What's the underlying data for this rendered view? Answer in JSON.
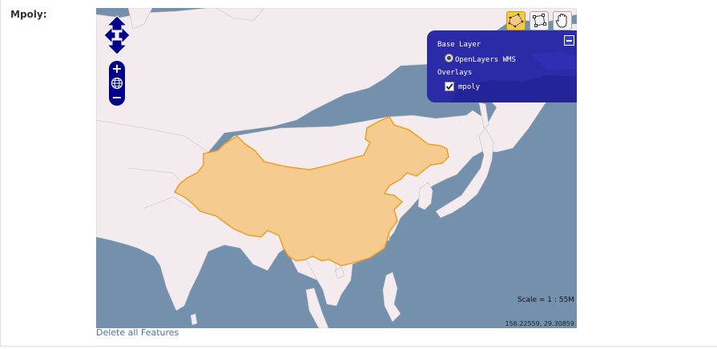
{
  "form": {
    "field_label": "Mpoly:"
  },
  "map": {
    "colors": {
      "sea": "#7391ad",
      "land": "#f3ebee",
      "feature_fill": "#f4c98a",
      "feature_stroke": "#f09a1a",
      "panel": "#00008b"
    },
    "pan_control": {
      "icons": [
        "arrow-up-icon",
        "arrow-left-icon",
        "arrow-right-icon",
        "arrow-down-icon"
      ]
    },
    "zoom_control": {
      "zoom_in": "+",
      "zoom_out": "−",
      "world_icon": "globe-icon"
    },
    "toolbar": {
      "tools": [
        "draw-polygon-icon",
        "modify-feature-icon",
        "pan-hand-icon"
      ],
      "active": "draw-polygon-icon"
    },
    "layer_switcher": {
      "base_header": "Base Layer",
      "base_layers": [
        {
          "label": "OpenLayers WMS",
          "selected": true
        }
      ],
      "overlays_header": "Overlays",
      "overlays": [
        {
          "label": "mpoly",
          "checked": true
        }
      ]
    },
    "scale": "Scale = 1 : 55M",
    "mouse_position": "156.22559, 29.30859"
  },
  "actions": {
    "delete_all": "Delete all Features"
  }
}
